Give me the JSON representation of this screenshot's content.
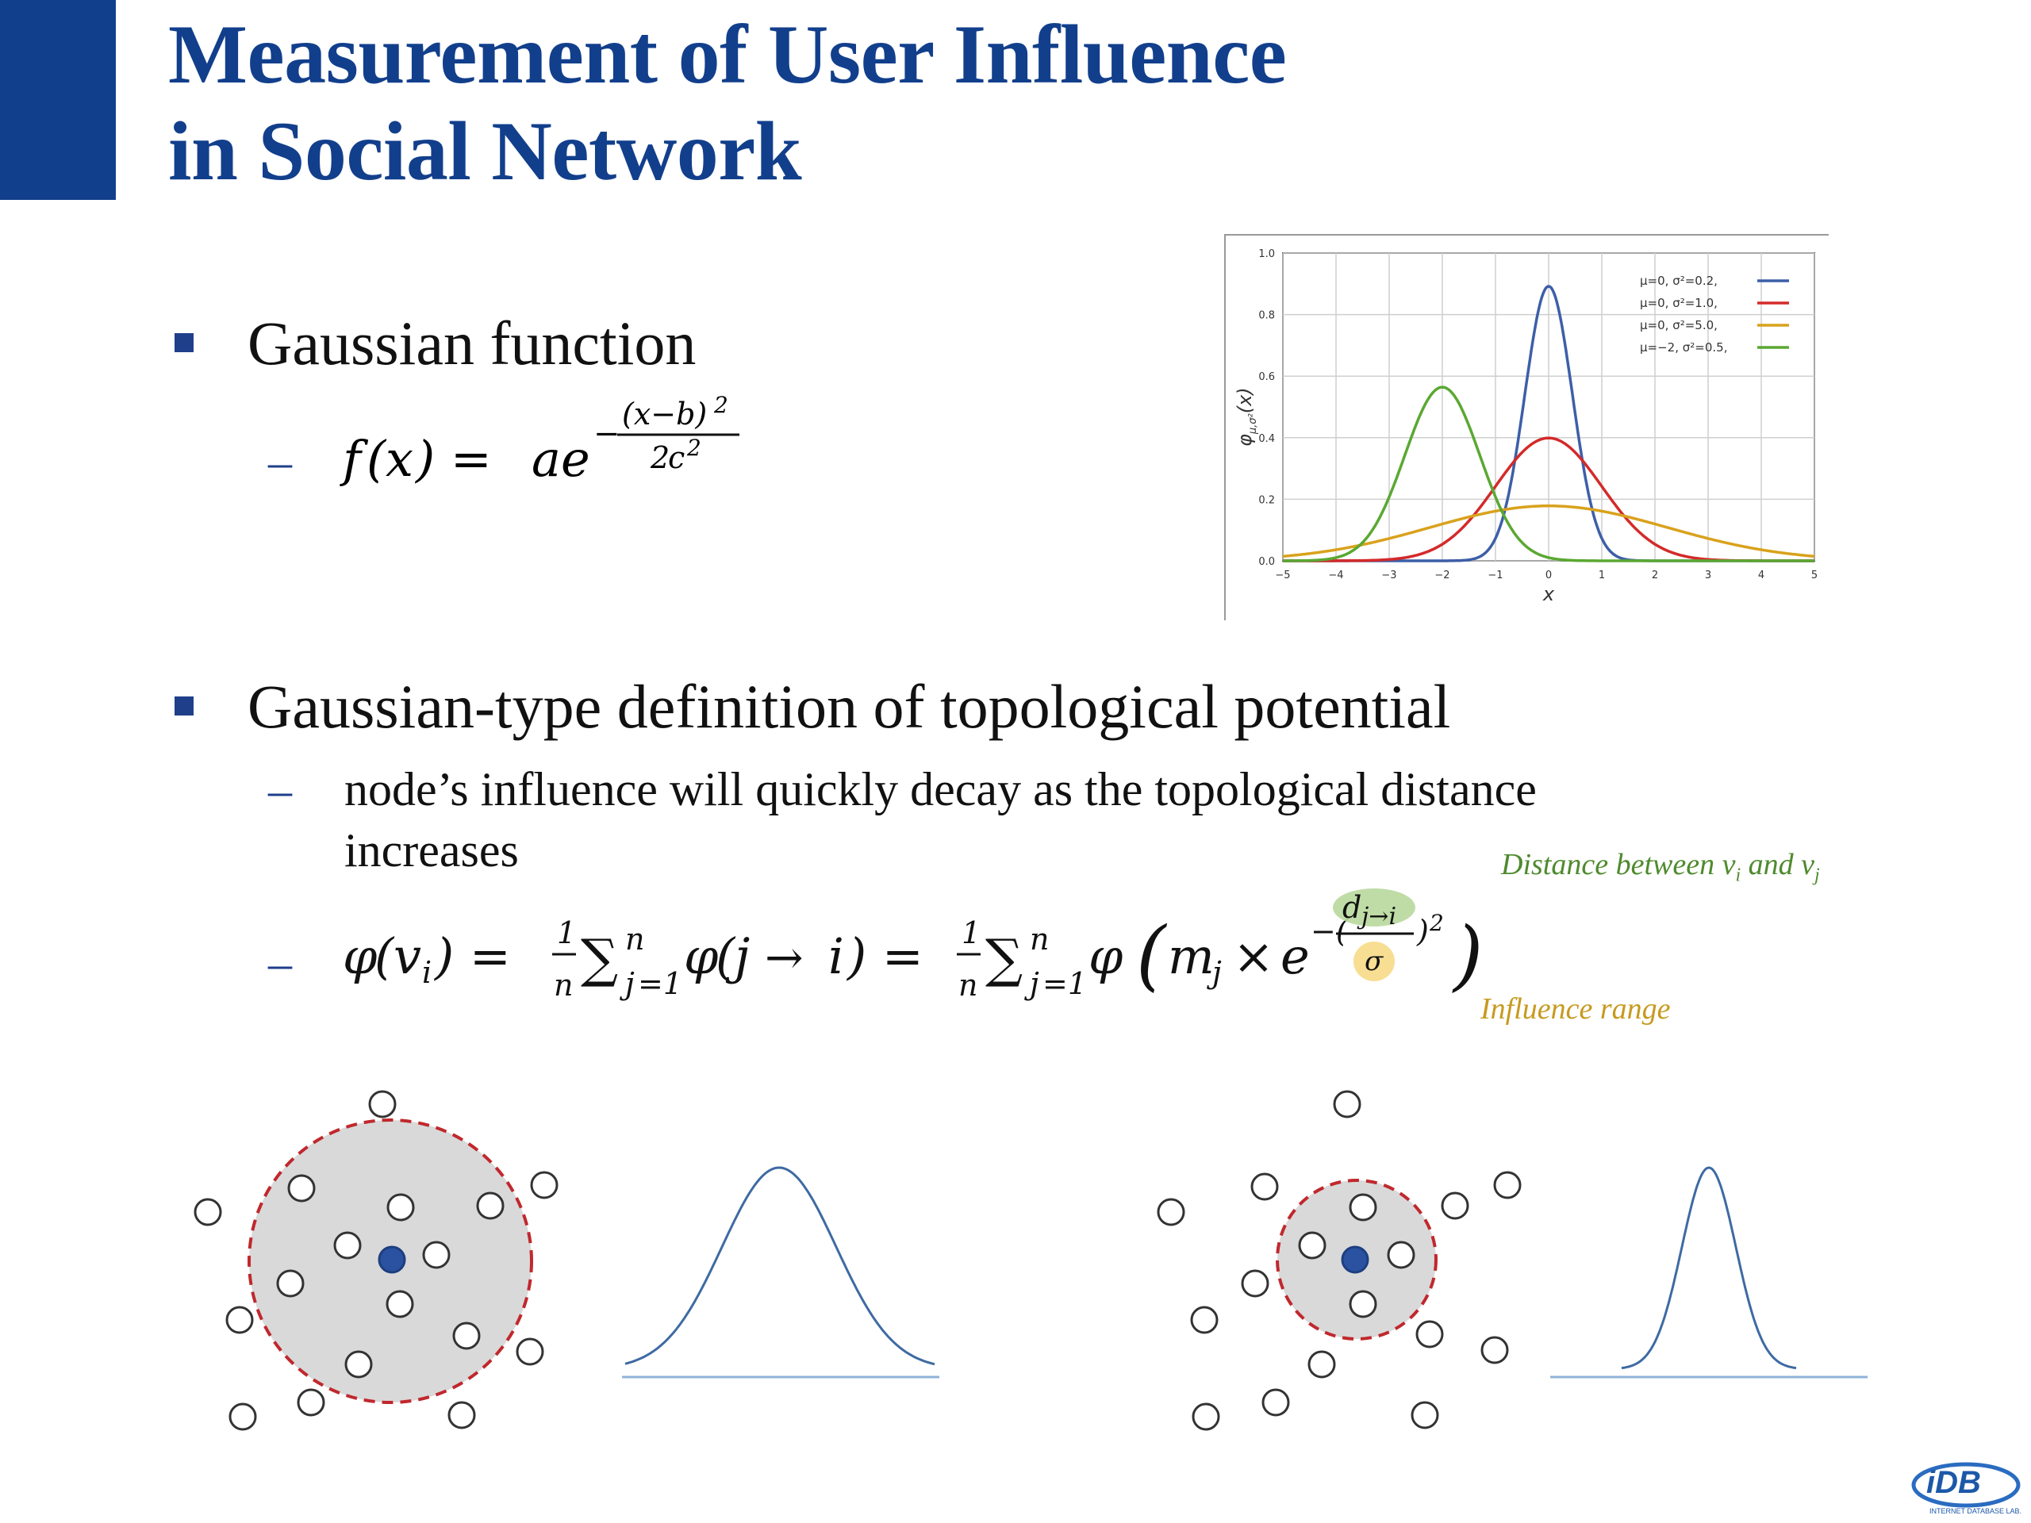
{
  "title": {
    "line1": "Measurement of User Influence",
    "line2": "in Social Network"
  },
  "bullets": [
    {
      "text": "Gaussian function"
    },
    {
      "text": "Gaussian-type definition of topological potential",
      "sub": "node’s influence will quickly decay as the topological distance",
      "sub2": "increases"
    }
  ],
  "formulas": {
    "gaussian": "f(x) = ae^(−(x−b)²/2c²)",
    "potential": "φ(v_i) = 1/n Σ_{j=1}^{n} φ(j → i) = 1/n Σ_{j=1}^{n} φ(m_j × e^(−(d_{j→i}/σ)²))"
  },
  "annotations": {
    "distance": "Distance between v",
    "distance_i": "i",
    "distance_and": " and v",
    "distance_j": "j",
    "range": "Influence range"
  },
  "chart_data": {
    "type": "line",
    "ylabel": "φ",
    "ylabel_sub": "μ,σ²",
    "ylabel_arg": "(x)",
    "xlabel": "x",
    "xlim": [
      -5,
      5
    ],
    "ylim": [
      0,
      1.0
    ],
    "xticks": [
      "−5",
      "−4",
      "−3",
      "−2",
      "−1",
      "0",
      "1",
      "2",
      "3",
      "4",
      "5"
    ],
    "yticks": [
      "0.0",
      "0.2",
      "0.4",
      "0.6",
      "0.8",
      "1.0"
    ],
    "grid": true,
    "legend_position": "top-right",
    "series": [
      {
        "name": "μ=0,   σ²=0.2,",
        "mu": 0,
        "var": 0.2,
        "color": "#3d5fa8"
      },
      {
        "name": "μ=0,   σ²=1.0,",
        "mu": 0,
        "var": 1.0,
        "color": "#d42a2a"
      },
      {
        "name": "μ=0,   σ²=5.0,",
        "mu": 0,
        "var": 5.0,
        "color": "#d9a21c"
      },
      {
        "name": "μ=−2, σ²=0.5,",
        "mu": -2,
        "var": 0.5,
        "color": "#5aa832"
      }
    ]
  },
  "colors": {
    "title": "#123f8c",
    "bullet": "#1f3f8a",
    "annotation_distance": "#4f8a2e",
    "annotation_range": "#c79a1f",
    "highlight_green": "#b8d89c",
    "highlight_yellow": "#f7dc8c",
    "circle_fill": "#d9d9d9",
    "circle_border": "#c0282d",
    "center_node": "#2a52a0",
    "curve": "#3e6aa3"
  },
  "logo": {
    "text": "iDB",
    "subtext": "INTERNET DATABASE LAB."
  }
}
